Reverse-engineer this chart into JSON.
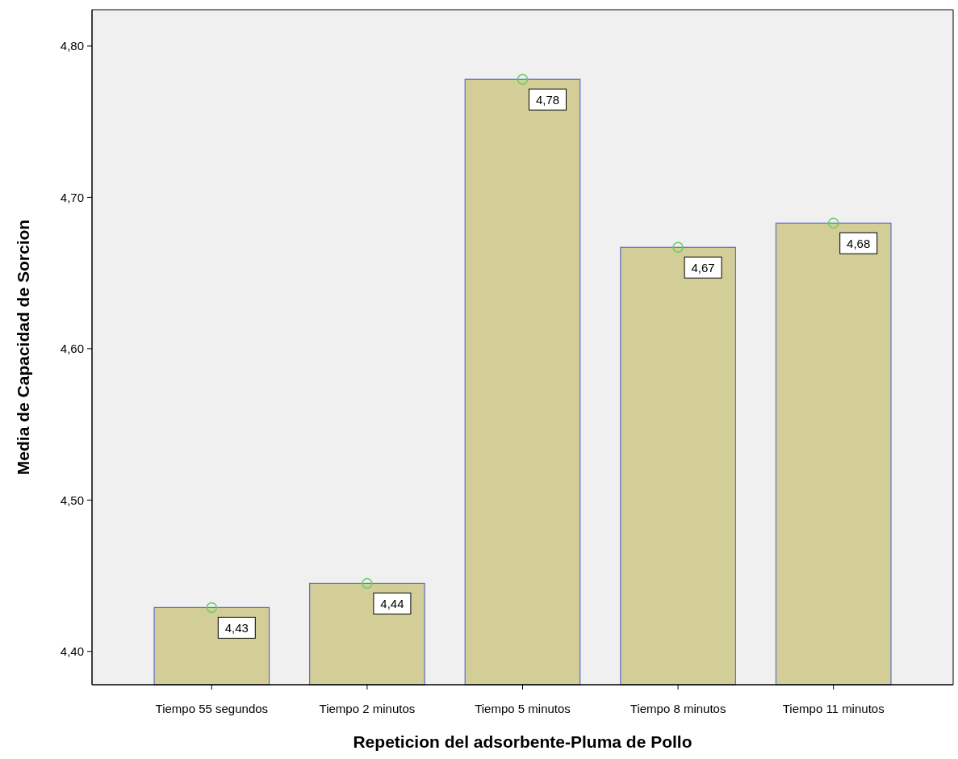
{
  "chart_data": {
    "type": "bar",
    "xlabel": "Repeticion del adsorbente-Pluma de Pollo",
    "ylabel": "Media de Capacidad de Sorcion",
    "categories": [
      "Tiempo 55 segundos",
      "Tiempo 2 minutos",
      "Tiempo 5 minutos",
      "Tiempo 8 minutos",
      "Tiempo 11 minutos"
    ],
    "series": [
      {
        "color": "#d3ce97",
        "values": [
          4.429,
          4.445,
          4.778,
          4.667,
          4.683
        ],
        "value_labels": [
          "4,43",
          "4,44",
          "4,78",
          "4,67",
          "4,68"
        ]
      },
      {
        "type": "scatter",
        "color": "#5fd35f",
        "marker": "circle",
        "values": [
          4.429,
          4.445,
          4.778,
          4.667,
          4.683
        ]
      }
    ],
    "ylim": [
      4.378,
      4.824
    ],
    "yticks": [
      {
        "value": 4.4,
        "label": "4,40"
      },
      {
        "value": 4.5,
        "label": "4,50"
      },
      {
        "value": 4.6,
        "label": "4,60"
      },
      {
        "value": 4.7,
        "label": "4,70"
      },
      {
        "value": 4.8,
        "label": "4,80"
      }
    ],
    "grid": false
  }
}
